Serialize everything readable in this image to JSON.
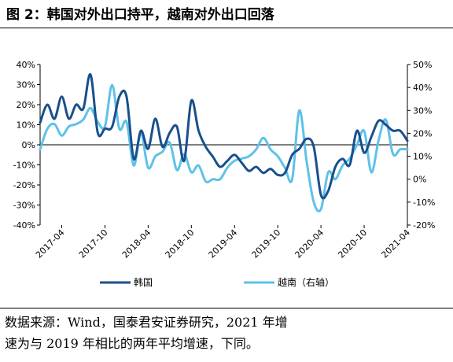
{
  "figure": {
    "title": "图 2：韩国对外出口持平，越南对外出口回落",
    "note_line1": "数据来源：Wind，国泰君安证券研究，2021 年增",
    "note_line2": "速为与 2019 年相比的两年平均增速，下同。"
  },
  "chart_data": {
    "type": "line",
    "x": [
      "2017-01",
      "2017-02",
      "2017-03",
      "2017-04",
      "2017-05",
      "2017-06",
      "2017-07",
      "2017-08",
      "2017-09",
      "2017-10",
      "2017-11",
      "2017-12",
      "2018-01",
      "2018-02",
      "2018-03",
      "2018-04",
      "2018-05",
      "2018-06",
      "2018-07",
      "2018-08",
      "2018-09",
      "2018-10",
      "2018-11",
      "2018-12",
      "2019-01",
      "2019-02",
      "2019-03",
      "2019-04",
      "2019-05",
      "2019-06",
      "2019-07",
      "2019-08",
      "2019-09",
      "2019-10",
      "2019-11",
      "2019-12",
      "2020-01",
      "2020-02",
      "2020-03",
      "2020-04",
      "2020-05",
      "2020-06",
      "2020-07",
      "2020-08",
      "2020-09",
      "2020-10",
      "2020-11",
      "2020-12",
      "2021-01",
      "2021-02",
      "2021-03",
      "2021-04"
    ],
    "x_tick_labels": [
      "2017-04",
      "2017-10",
      "2018-04",
      "2018-10",
      "2019-04",
      "2019-10",
      "2020-04",
      "2020-10",
      "2021-04"
    ],
    "series": [
      {
        "name": "韩国",
        "axis": "left",
        "color": "#1a4f8c",
        "values": [
          11,
          20,
          13,
          24,
          13,
          20,
          18,
          35,
          6,
          8,
          9,
          24,
          24,
          -7,
          7,
          -2,
          13,
          -1,
          6,
          9,
          -8,
          22,
          7,
          -1,
          -6,
          -11,
          -8,
          -5,
          -9,
          -13,
          -11,
          -14,
          -12,
          -15,
          -14,
          -5,
          -2,
          3,
          -1,
          -25,
          -23,
          -11,
          -7,
          -10,
          7,
          -4,
          4,
          12,
          10,
          7,
          7,
          2
        ]
      },
      {
        "name": "越南（右轴）",
        "axis": "right",
        "color": "#5ec2e8",
        "values": [
          13,
          22,
          24,
          19,
          23,
          24,
          26,
          31,
          25,
          23,
          41,
          22,
          25,
          6,
          20,
          5,
          10,
          12,
          16,
          4,
          11,
          3,
          6,
          -1,
          0,
          0,
          5,
          8,
          9,
          10,
          13,
          18,
          13,
          10,
          5,
          0,
          30,
          8,
          -10,
          -13,
          3,
          0,
          6,
          9,
          15,
          21,
          3,
          17,
          26,
          11,
          13,
          13
        ]
      }
    ],
    "y_left": {
      "ylim": [
        -40,
        40
      ],
      "ticks": [
        "-40%",
        "-30%",
        "-20%",
        "-10%",
        "0%",
        "10%",
        "20%",
        "30%",
        "40%"
      ]
    },
    "y_right": {
      "ylim": [
        -20,
        50
      ],
      "ticks": [
        "-20%",
        "-10%",
        "0%",
        "10%",
        "20%",
        "30%",
        "40%",
        "50%"
      ]
    },
    "legend_position": "bottom",
    "grid": false
  }
}
